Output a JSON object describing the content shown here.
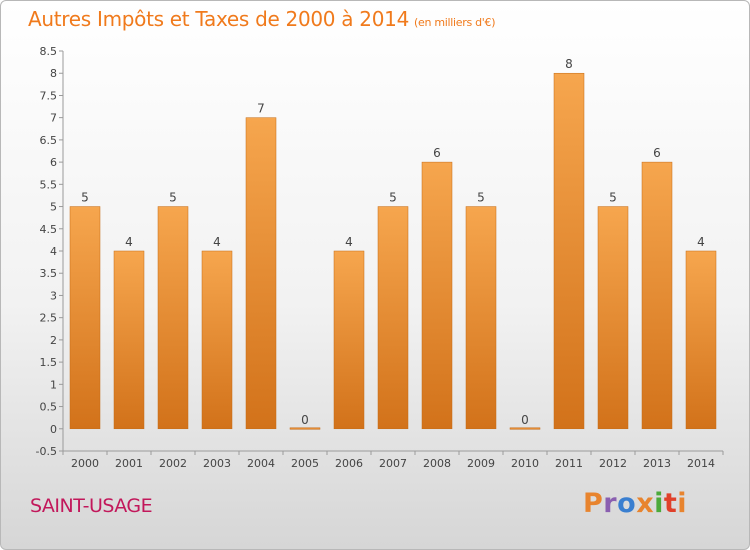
{
  "header": {
    "title": "Autres Impôts et Taxes de 2000 à 2014",
    "unit": "(en milliers d'€)"
  },
  "footer": {
    "commune": "SAINT-USAGE",
    "logo": "Proxiti"
  },
  "colors": {
    "title": "#f07a1c",
    "commune": "#c2185b",
    "bar_light": "#f6a64e",
    "bar_dark": "#d2721a",
    "logo_letters": [
      "#e8842e",
      "#8a5fb0",
      "#3a7fd0",
      "#e8842e",
      "#4caa3a",
      "#e0402a",
      "#e8842e"
    ]
  },
  "chart_data": {
    "type": "bar",
    "title": "Autres Impôts et Taxes de 2000 à 2014",
    "subtitle": "(en milliers d'€)",
    "xlabel": "",
    "ylabel": "",
    "categories": [
      "2000",
      "2001",
      "2002",
      "2003",
      "2004",
      "2005",
      "2006",
      "2007",
      "2008",
      "2009",
      "2010",
      "2011",
      "2012",
      "2013",
      "2014"
    ],
    "values": [
      5,
      4,
      5,
      4,
      7,
      0,
      4,
      5,
      6,
      5,
      0,
      8,
      5,
      6,
      4
    ],
    "data_labels": [
      "5",
      "4",
      "5",
      "4",
      "7",
      "0",
      "4",
      "5",
      "6",
      "5",
      "0",
      "8",
      "5",
      "6",
      "4"
    ],
    "ylim": [
      -0.5,
      8.5
    ],
    "yticks": [
      "-0.5",
      "0",
      "0.5",
      "1",
      "1.5",
      "2",
      "2.5",
      "3",
      "3.5",
      "4",
      "4.5",
      "5",
      "5.5",
      "6",
      "6.5",
      "7",
      "7.5",
      "8",
      "8.5"
    ],
    "ytick_values": [
      -0.5,
      0,
      0.5,
      1,
      1.5,
      2,
      2.5,
      3,
      3.5,
      4,
      4.5,
      5,
      5.5,
      6,
      6.5,
      7,
      7.5,
      8,
      8.5
    ],
    "grid": false,
    "legend": "none"
  }
}
